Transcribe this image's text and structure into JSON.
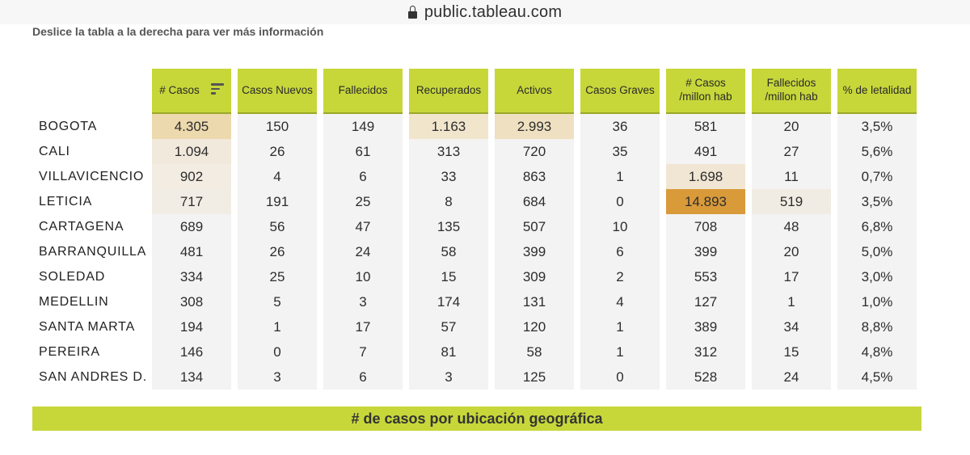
{
  "browser": {
    "url": "public.tableau.com"
  },
  "instruction": "Deslice la tabla a la derecha para ver más información",
  "table": {
    "columns": [
      "# Casos",
      "Casos Nuevos",
      "Fallecidos",
      "Recuperados",
      "Activos",
      "Casos Graves",
      "# Casos /millon hab",
      "Fallecidos /millon hab",
      "% de letalidad"
    ],
    "sorted_column_icon": "sort-descending-icon",
    "rows": [
      {
        "city": "BOGOTA",
        "values": [
          "4.305",
          "150",
          "149",
          "1.163",
          "2.993",
          "36",
          "581",
          "20",
          "3,5%"
        ]
      },
      {
        "city": "CALI",
        "values": [
          "1.094",
          "26",
          "61",
          "313",
          "720",
          "35",
          "491",
          "27",
          "5,6%"
        ]
      },
      {
        "city": "VILLAVICENCIO",
        "values": [
          "902",
          "4",
          "6",
          "33",
          "863",
          "1",
          "1.698",
          "11",
          "0,7%"
        ]
      },
      {
        "city": "LETICIA",
        "values": [
          "717",
          "191",
          "25",
          "8",
          "684",
          "0",
          "14.893",
          "519",
          "3,5%"
        ]
      },
      {
        "city": "CARTAGENA",
        "values": [
          "689",
          "56",
          "47",
          "135",
          "507",
          "10",
          "708",
          "48",
          "6,8%"
        ]
      },
      {
        "city": "BARRANQUILLA",
        "values": [
          "481",
          "26",
          "24",
          "58",
          "399",
          "6",
          "399",
          "20",
          "5,0%"
        ]
      },
      {
        "city": "SOLEDAD",
        "values": [
          "334",
          "25",
          "10",
          "15",
          "309",
          "2",
          "553",
          "17",
          "3,0%"
        ]
      },
      {
        "city": "MEDELLIN",
        "values": [
          "308",
          "5",
          "3",
          "174",
          "131",
          "4",
          "127",
          "1",
          "1,0%"
        ]
      },
      {
        "city": "SANTA MARTA",
        "values": [
          "194",
          "1",
          "17",
          "57",
          "120",
          "1",
          "389",
          "34",
          "8,8%"
        ]
      },
      {
        "city": "PEREIRA",
        "values": [
          "146",
          "0",
          "7",
          "81",
          "58",
          "1",
          "312",
          "15",
          "4,8%"
        ]
      },
      {
        "city": "SAN ANDRES D..",
        "values": [
          "134",
          "3",
          "6",
          "3",
          "125",
          "0",
          "528",
          "24",
          "4,5%"
        ]
      }
    ],
    "heat_colors": {
      "0,0": "#edd9ae",
      "0,3": "#f1e5cc",
      "0,4": "#efe0c1",
      "1,0": "#f1e9db",
      "2,0": "#f2ece2",
      "2,6": "#f0e6d3",
      "3,0": "#f2ede4",
      "3,6": "#d99a3a",
      "3,7": "#f1ece3"
    }
  },
  "footer": {
    "title": "# de casos por ubicación geográfica"
  }
}
